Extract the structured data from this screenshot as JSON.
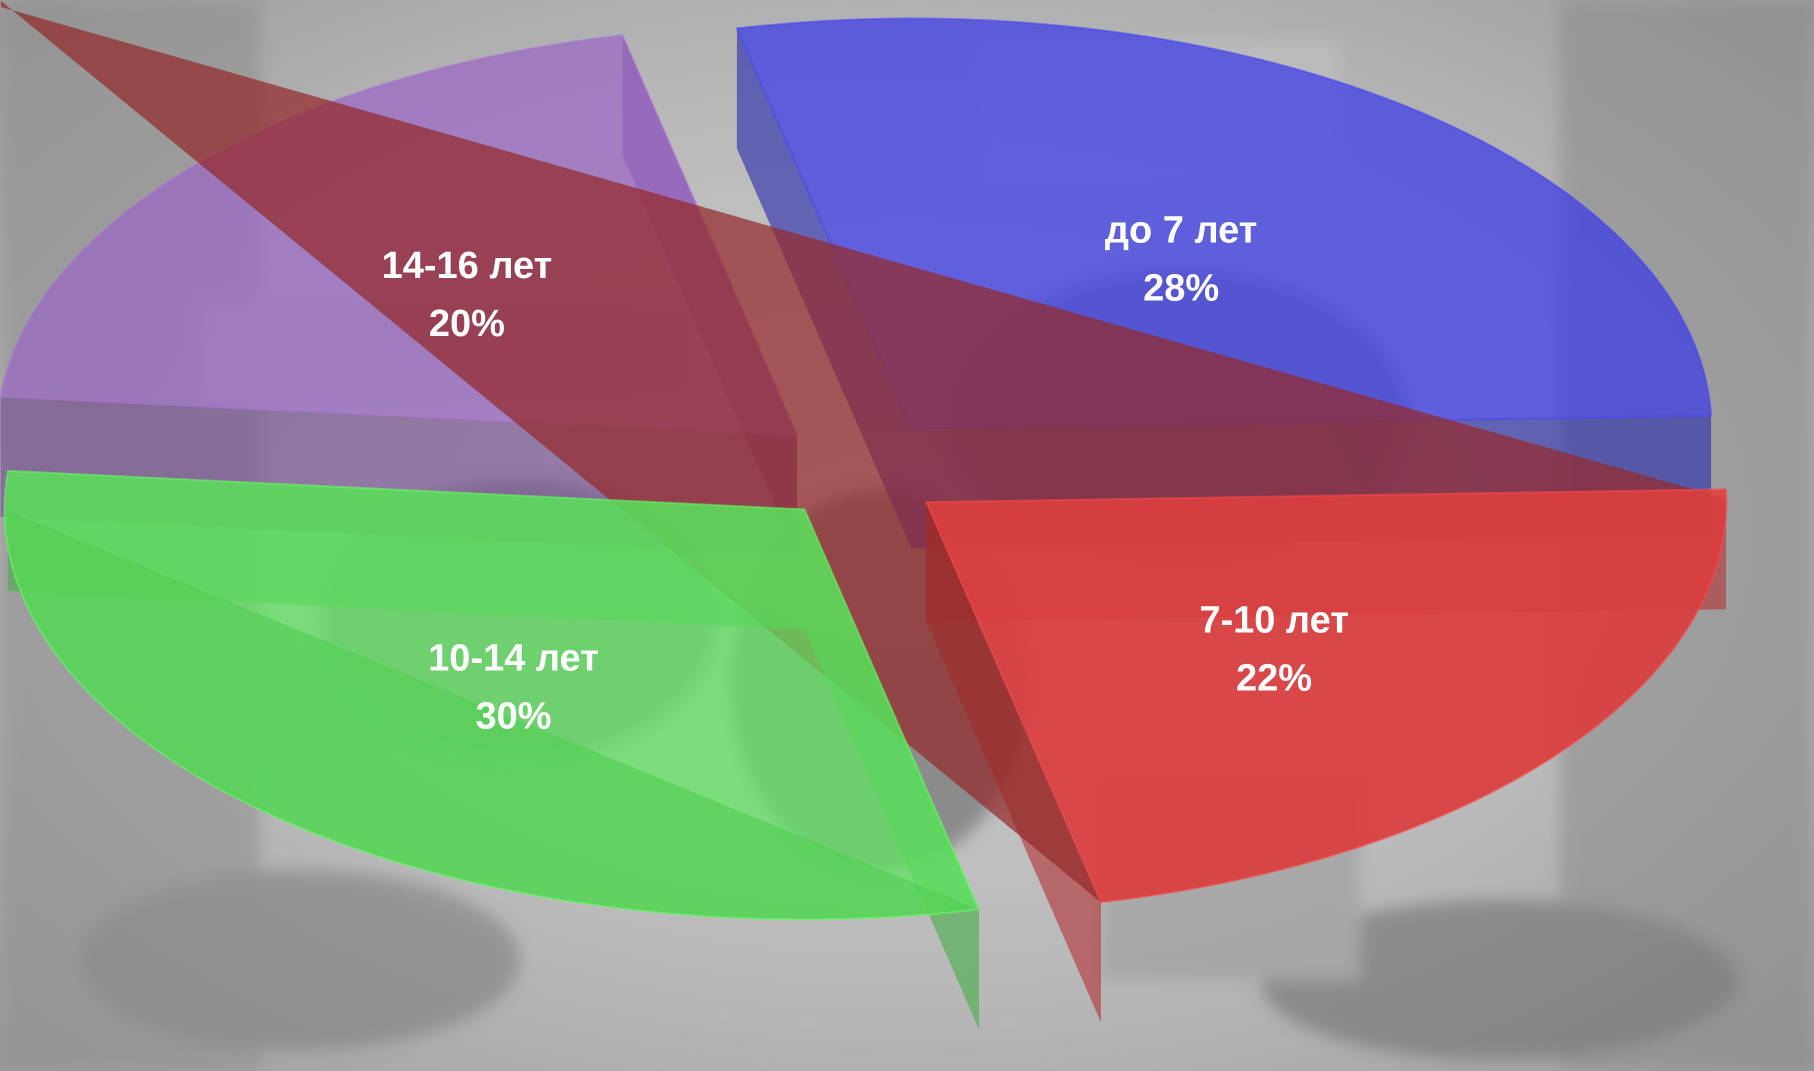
{
  "chart_data": {
    "type": "pie",
    "style": "3d-exploded",
    "background": "grayscale photo",
    "title": "",
    "unit": "%",
    "slices": [
      {
        "label": "до 7 лет",
        "value": 28,
        "display": "28%",
        "color": "#3a3ae6"
      },
      {
        "label": "7-10 лет",
        "value": 22,
        "display": "22%",
        "color": "#ef4444"
      },
      {
        "label": "10-14 лет",
        "value": 30,
        "display": "30%",
        "color": "#5fe85f"
      },
      {
        "label": "14-16 лет",
        "value": 20,
        "display": "20%",
        "color": "#9a66c4"
      }
    ]
  }
}
